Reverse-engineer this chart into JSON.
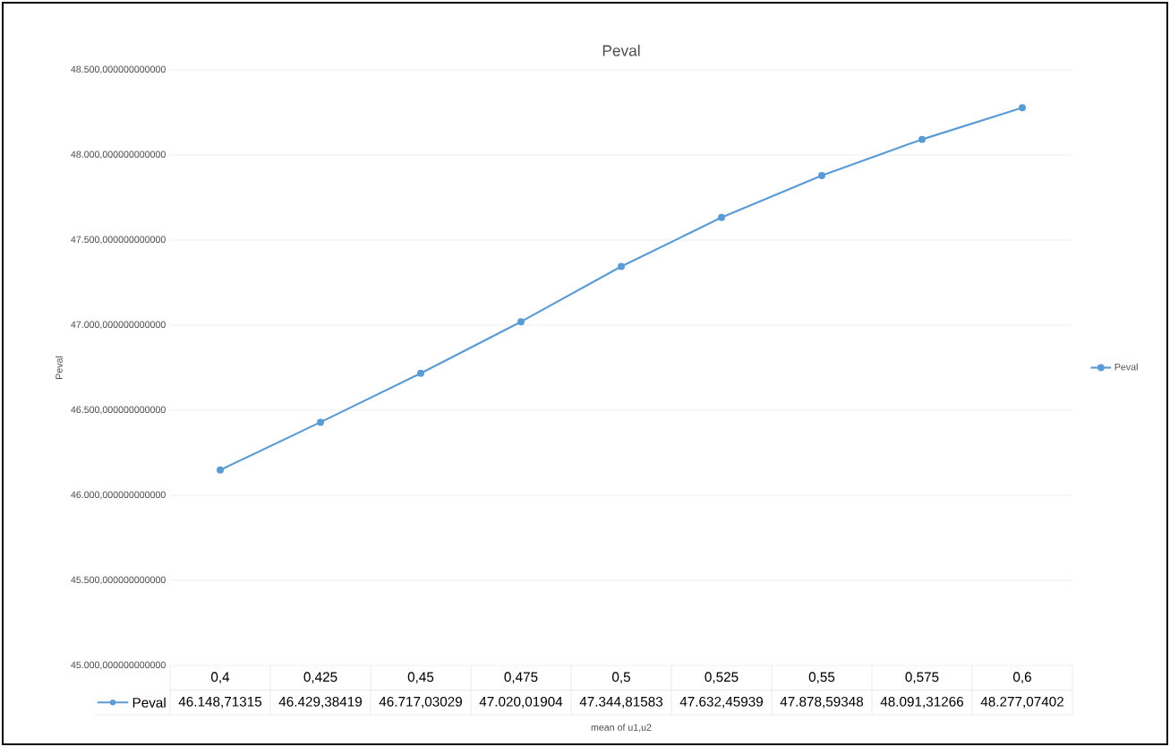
{
  "chart_data": {
    "type": "line",
    "title": "Peval",
    "xlabel": "mean of u1,u2",
    "ylabel": "Peval",
    "categories": [
      "0,4",
      "0,425",
      "0,45",
      "0,475",
      "0,5",
      "0,525",
      "0,55",
      "0,575",
      "0,6"
    ],
    "series": [
      {
        "name": "Peval",
        "color": "#5b9bd5",
        "values": [
          46148.71315,
          46429.38419,
          46717.03029,
          47020.01904,
          47344.81583,
          47632.45939,
          47878.59348,
          48091.31266,
          48277.07402
        ],
        "value_labels": [
          "46.148,71315",
          "46.429,38419",
          "46.717,03029",
          "47.020,01904",
          "47.344,81583",
          "47.632,45939",
          "47.878,59348",
          "48.091,31266",
          "48.277,07402"
        ]
      }
    ],
    "ylim": [
      45000,
      48500
    ],
    "yticks": [
      {
        "value": 45000,
        "label": "45.000,000000000000"
      },
      {
        "value": 45500,
        "label": "45.500,000000000000"
      },
      {
        "value": 46000,
        "label": "46.000,000000000000"
      },
      {
        "value": 46500,
        "label": "46.500,000000000000"
      },
      {
        "value": 47000,
        "label": "47.000,000000000000"
      },
      {
        "value": 47500,
        "label": "47.500,000000000000"
      },
      {
        "value": 48000,
        "label": "48.000,000000000000"
      },
      {
        "value": 48500,
        "label": "48.500,000000000000"
      }
    ],
    "grid": "y",
    "legend": "right",
    "marker": "circle",
    "line_style": "solid"
  }
}
